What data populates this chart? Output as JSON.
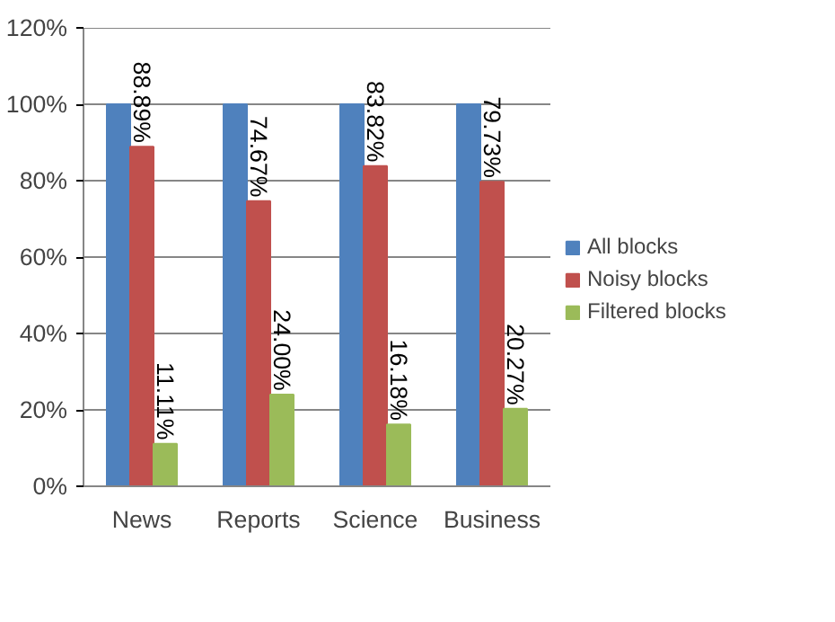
{
  "chart_data": {
    "type": "bar",
    "categories": [
      "News",
      "Reports",
      "Science",
      "Business"
    ],
    "series": [
      {
        "name": "All blocks",
        "color": "#4f81bd",
        "values": [
          100,
          100,
          100,
          100
        ]
      },
      {
        "name": "Noisy blocks",
        "color": "#c0504d",
        "values": [
          88.89,
          74.67,
          83.82,
          79.73
        ],
        "value_labels": [
          "88.89%",
          "74.67%",
          "83.82%",
          "79.73%"
        ]
      },
      {
        "name": "Filtered blocks",
        "color": "#9bbb59",
        "values": [
          11.11,
          24.0,
          16.18,
          20.27
        ],
        "value_labels": [
          "11.11%",
          "24.00%",
          "16.18%",
          "20.27%"
        ]
      }
    ],
    "ylim": [
      0,
      120
    ],
    "yticks": [
      {
        "value": 0,
        "label": "0%"
      },
      {
        "value": 20,
        "label": "20%"
      },
      {
        "value": 40,
        "label": "40%"
      },
      {
        "value": 60,
        "label": "60%"
      },
      {
        "value": 80,
        "label": "80%"
      },
      {
        "value": 100,
        "label": "100%"
      },
      {
        "value": 120,
        "label": "120%"
      }
    ],
    "grid": "y",
    "legend": "right"
  }
}
